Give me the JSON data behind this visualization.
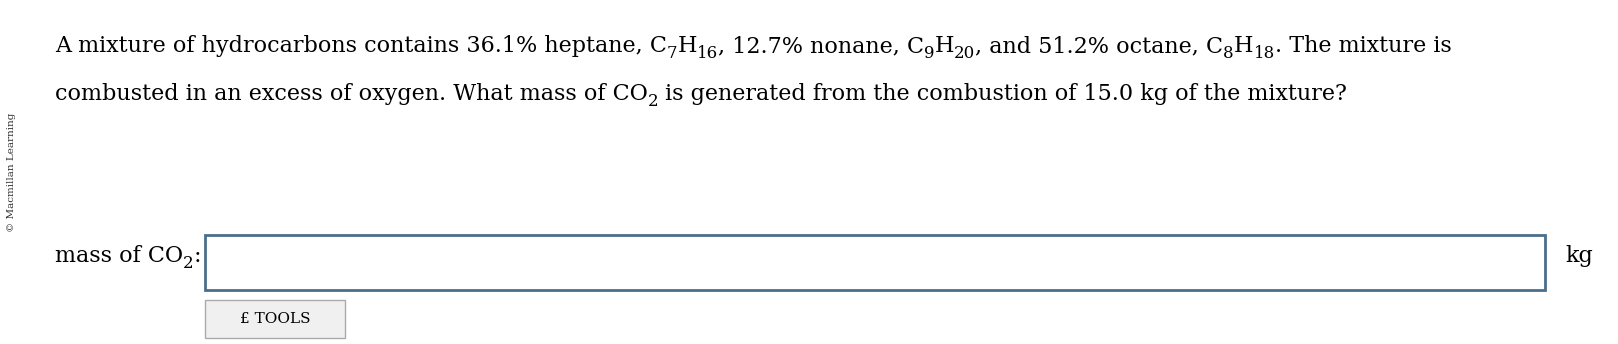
{
  "line1_parts": [
    {
      "text": "A mixture of hydrocarbons contains 36.1% heptane, C",
      "style": "normal"
    },
    {
      "text": "7",
      "style": "sub"
    },
    {
      "text": "H",
      "style": "normal"
    },
    {
      "text": "16",
      "style": "sub"
    },
    {
      "text": ", 12.7% nonane, C",
      "style": "normal"
    },
    {
      "text": "9",
      "style": "sub"
    },
    {
      "text": "H",
      "style": "normal"
    },
    {
      "text": "20",
      "style": "sub"
    },
    {
      "text": ", and 51.2% octane, C",
      "style": "normal"
    },
    {
      "text": "8",
      "style": "sub"
    },
    {
      "text": "H",
      "style": "normal"
    },
    {
      "text": "18",
      "style": "sub"
    },
    {
      "text": ". The mixture is",
      "style": "normal"
    }
  ],
  "line2_parts": [
    {
      "text": "combusted in an excess of oxygen. What mass of CO",
      "style": "normal"
    },
    {
      "text": "2",
      "style": "sub"
    },
    {
      "text": " is generated from the combustion of 15.0 kg of the mixture?",
      "style": "normal"
    }
  ],
  "label_parts": [
    {
      "text": "mass of CO",
      "style": "normal"
    },
    {
      "text": "2",
      "style": "sub"
    },
    {
      "text": ":",
      "style": "normal"
    }
  ],
  "unit": "kg",
  "bg_color": "#ffffff",
  "text_color": "#000000",
  "box_border_color": "#4a6f8a",
  "box_fill_color": "#ffffff",
  "sidebar_text": "© Macmillan Learning",
  "sidebar_color": "#333333",
  "font_size_main": 16,
  "font_size_label": 16,
  "tools_text": "£ TOOLS",
  "tools_border": "#aaaaaa",
  "tools_fill": "#f0f0f0"
}
